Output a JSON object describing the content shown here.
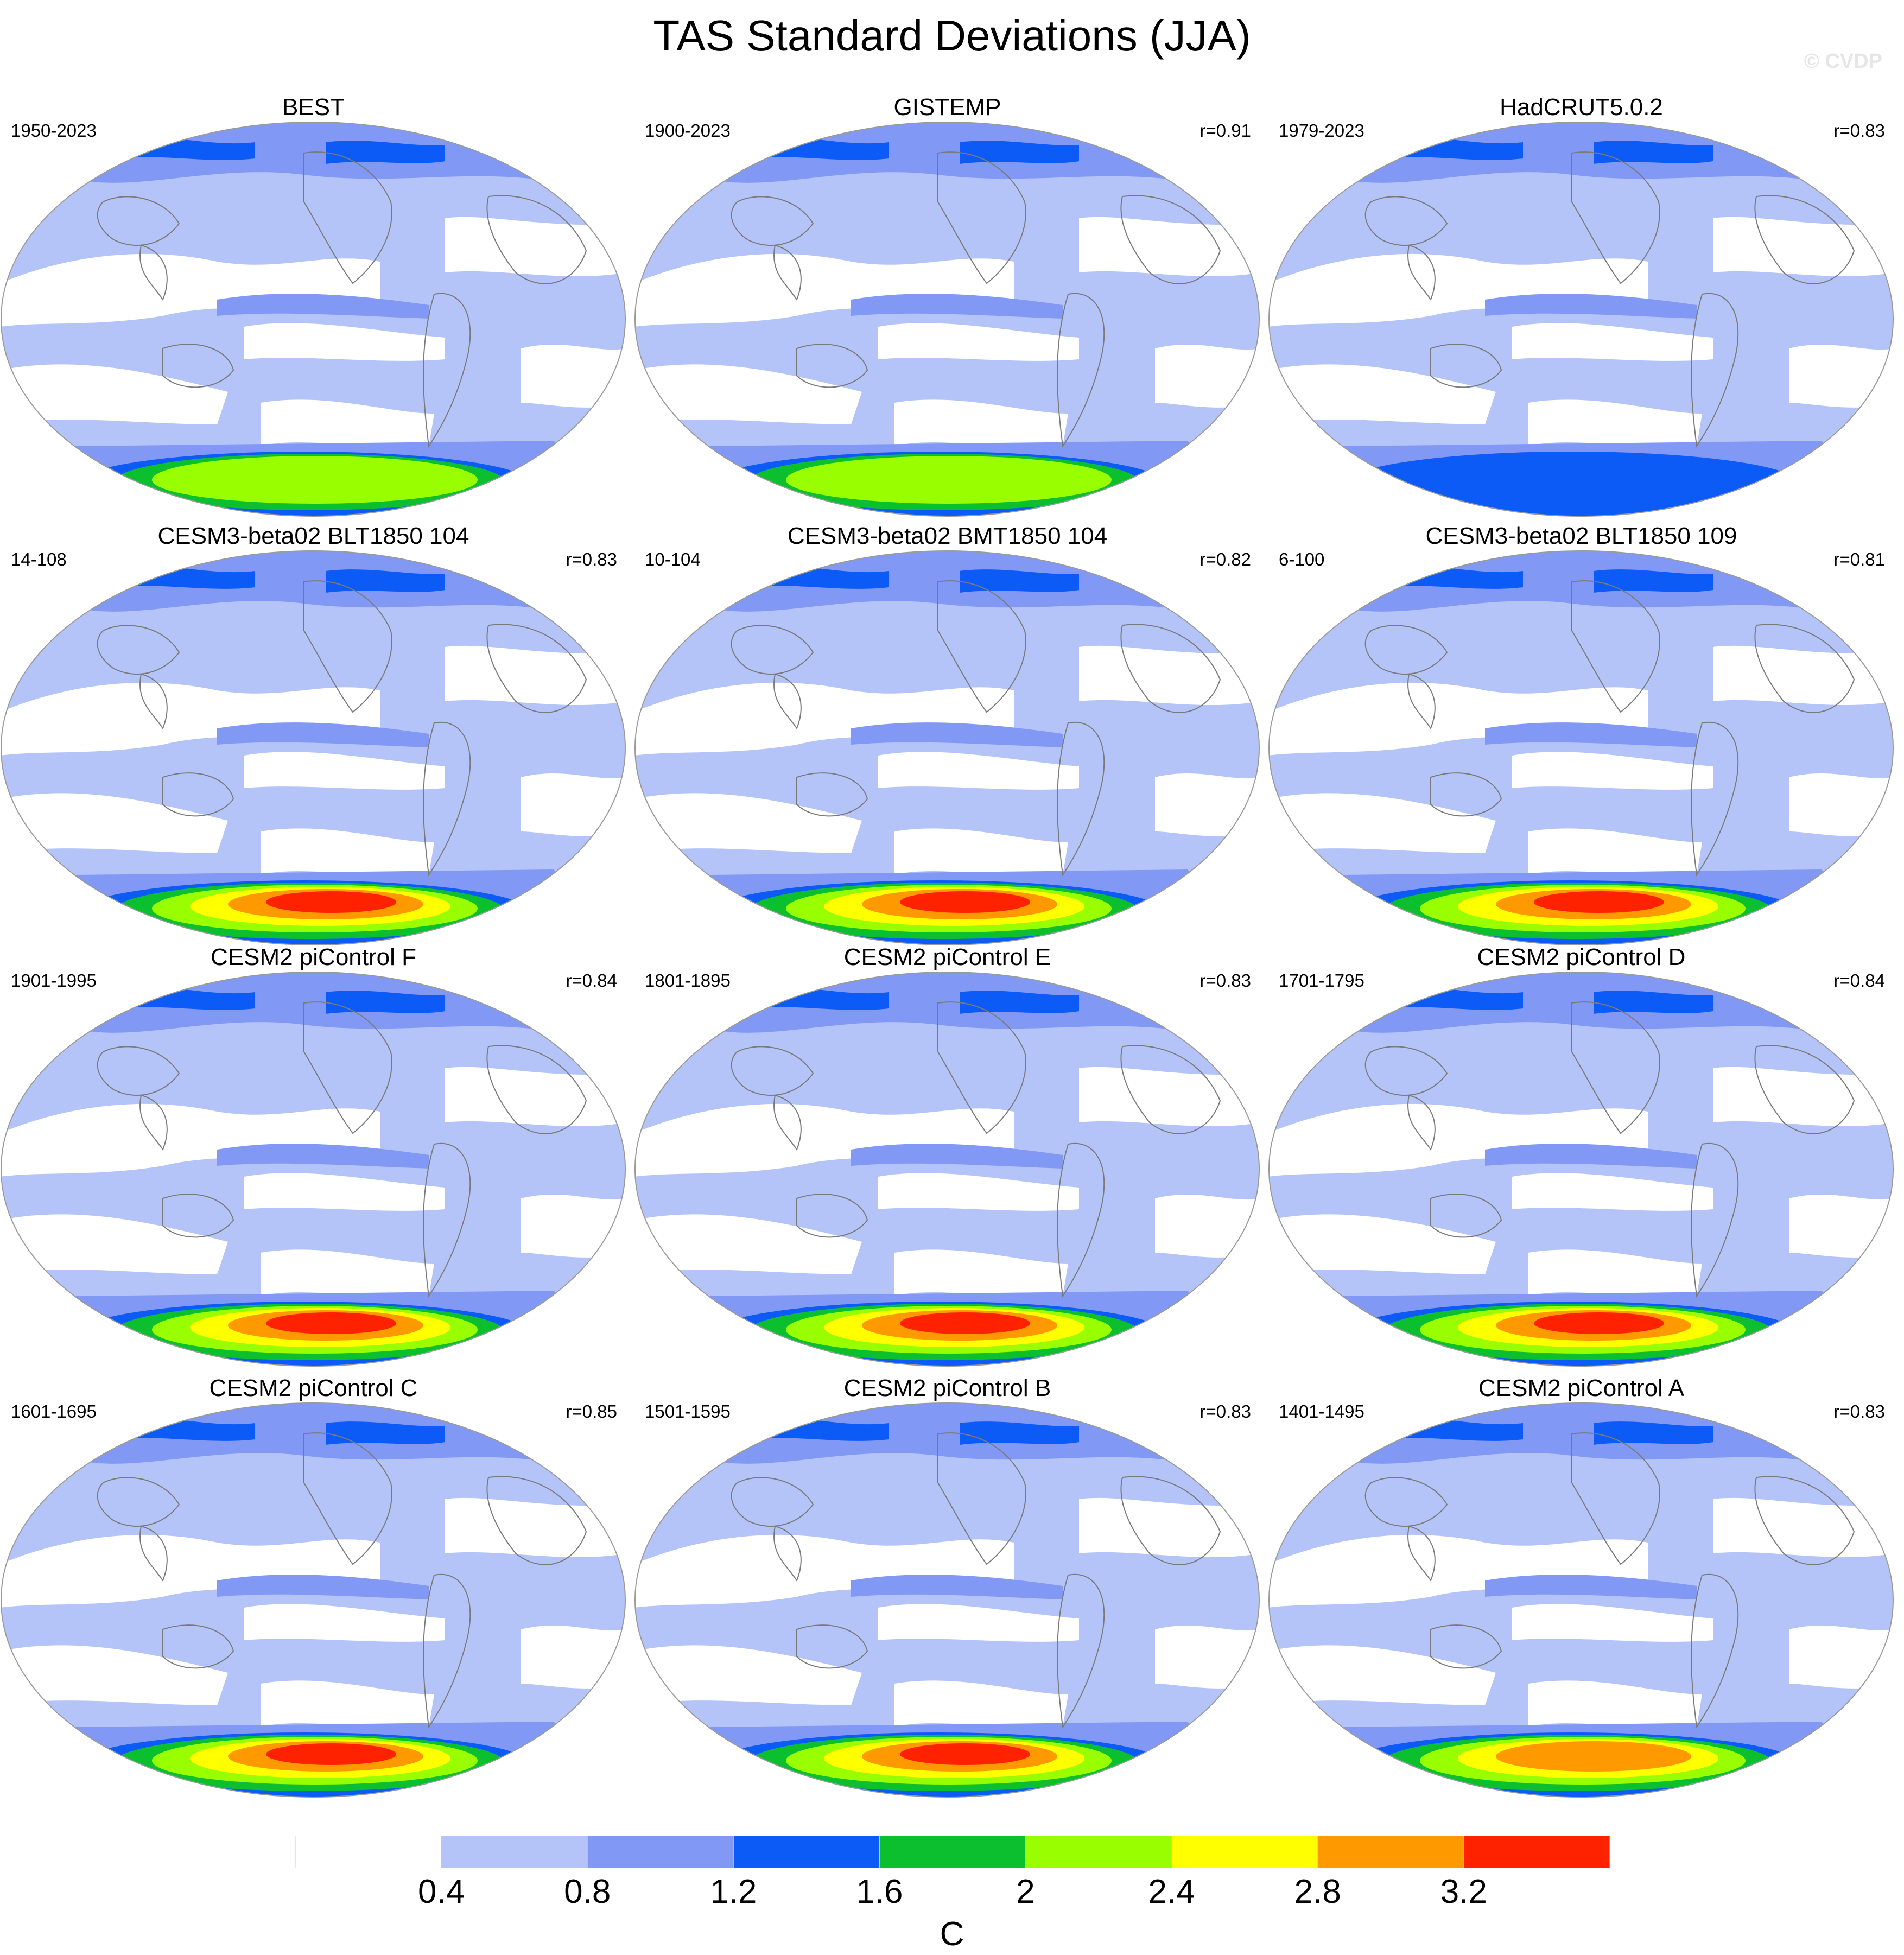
{
  "figure": {
    "title": "TAS Standard Deviations (JJA)",
    "watermark": "© CVDP"
  },
  "panels": [
    {
      "title": "BEST",
      "period": "1950-2023",
      "correlation": "",
      "antarctic_peak": 2.4
    },
    {
      "title": "GISTEMP",
      "period": "1900-2023",
      "correlation": "r=0.91",
      "antarctic_peak": 2.4
    },
    {
      "title": "HadCRUT5.0.2",
      "period": "1979-2023",
      "correlation": "r=0.83",
      "antarctic_peak": 1.6
    },
    {
      "title": "CESM3-beta02 BLT1850 104",
      "period": "14-108",
      "correlation": "r=0.83",
      "antarctic_peak": 3.6
    },
    {
      "title": "CESM3-beta02 BMT1850 104",
      "period": "10-104",
      "correlation": "r=0.82",
      "antarctic_peak": 3.6
    },
    {
      "title": "CESM3-beta02 BLT1850 109",
      "period": "6-100",
      "correlation": "r=0.81",
      "antarctic_peak": 3.6
    },
    {
      "title": "CESM2 piControl F",
      "period": "1901-1995",
      "correlation": "r=0.84",
      "antarctic_peak": 3.6
    },
    {
      "title": "CESM2 piControl E",
      "period": "1801-1895",
      "correlation": "r=0.83",
      "antarctic_peak": 3.6
    },
    {
      "title": "CESM2 piControl D",
      "period": "1701-1795",
      "correlation": "r=0.84",
      "antarctic_peak": 3.6
    },
    {
      "title": "CESM2 piControl C",
      "period": "1601-1695",
      "correlation": "r=0.85",
      "antarctic_peak": 3.6
    },
    {
      "title": "CESM2 piControl B",
      "period": "1501-1595",
      "correlation": "r=0.83",
      "antarctic_peak": 3.6
    },
    {
      "title": "CESM2 piControl A",
      "period": "1401-1495",
      "correlation": "r=0.83",
      "antarctic_peak": 3.2
    }
  ],
  "colorbar": {
    "units": "C",
    "labels": [
      "0.4",
      "0.8",
      "1.2",
      "1.6",
      "2",
      "2.4",
      "2.8",
      "3.2"
    ],
    "colors": [
      "#ffffff",
      "#b4c4f8",
      "#8199f4",
      "#0c5bf7",
      "#0cbf2f",
      "#99ff00",
      "#ffff00",
      "#ff9900",
      "#ff2200"
    ]
  }
}
